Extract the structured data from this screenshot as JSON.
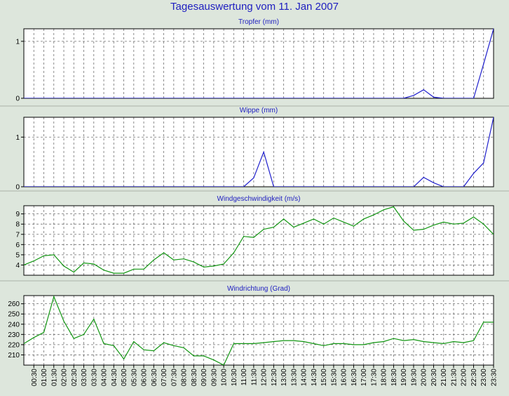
{
  "page_title": "Tagesauswertung vom 11. Jan 2007",
  "colors": {
    "background": "#dde6dc",
    "title": "#2020c0",
    "rain_line": "#1f1fcc",
    "wind_line": "#129612"
  },
  "time_labels": [
    "00:30",
    "01:00",
    "01:30",
    "02:00",
    "02:30",
    "03:00",
    "03:30",
    "04:00",
    "04:30",
    "05:00",
    "05:30",
    "06:00",
    "06:30",
    "07:00",
    "07:30",
    "08:00",
    "08:30",
    "09:00",
    "09:30",
    "10:00",
    "10:30",
    "11:00",
    "11:30",
    "12:00",
    "12:30",
    "13:00",
    "13:30",
    "14:00",
    "14:30",
    "15:00",
    "15:30",
    "16:00",
    "16:30",
    "17:00",
    "17:30",
    "18:00",
    "18:30",
    "19:00",
    "19:30",
    "20:00",
    "20:30",
    "21:00",
    "21:30",
    "22:00",
    "22:30",
    "23:00",
    "23:30"
  ],
  "chart_data": [
    {
      "type": "line",
      "title": "Tropfer (mm)",
      "color": "#1f1fcc",
      "ylim": [
        0,
        1.22
      ],
      "yticks": [
        0,
        1
      ],
      "x": [
        "00:00",
        "00:30",
        "01:00",
        "01:30",
        "02:00",
        "02:30",
        "03:00",
        "03:30",
        "04:00",
        "04:30",
        "05:00",
        "05:30",
        "06:00",
        "06:30",
        "07:00",
        "07:30",
        "08:00",
        "08:30",
        "09:00",
        "09:30",
        "10:00",
        "10:30",
        "11:00",
        "11:30",
        "12:00",
        "12:30",
        "13:00",
        "13:30",
        "14:00",
        "14:30",
        "15:00",
        "15:30",
        "16:00",
        "16:30",
        "17:00",
        "17:30",
        "18:00",
        "18:30",
        "19:00",
        "19:30",
        "20:00",
        "20:30",
        "21:00",
        "21:30",
        "22:00",
        "22:30",
        "23:00",
        "23:30"
      ],
      "values": [
        0,
        0,
        0,
        0,
        0,
        0,
        0,
        0,
        0,
        0,
        0,
        0,
        0,
        0,
        0,
        0,
        0,
        0,
        0,
        0,
        0,
        0,
        0,
        0,
        0,
        0,
        0,
        0,
        0,
        0,
        0,
        0,
        0,
        0,
        0,
        0,
        0,
        0,
        0,
        0.05,
        0.15,
        0.02,
        0,
        0,
        0,
        0,
        0.6,
        1.22
      ]
    },
    {
      "type": "line",
      "title": "Wippe (mm)",
      "color": "#1f1fcc",
      "ylim": [
        0,
        1.4
      ],
      "yticks": [
        0,
        1
      ],
      "x": [
        "00:00",
        "00:30",
        "01:00",
        "01:30",
        "02:00",
        "02:30",
        "03:00",
        "03:30",
        "04:00",
        "04:30",
        "05:00",
        "05:30",
        "06:00",
        "06:30",
        "07:00",
        "07:30",
        "08:00",
        "08:30",
        "09:00",
        "09:30",
        "10:00",
        "10:30",
        "11:00",
        "11:30",
        "12:00",
        "12:30",
        "13:00",
        "13:30",
        "14:00",
        "14:30",
        "15:00",
        "15:30",
        "16:00",
        "16:30",
        "17:00",
        "17:30",
        "18:00",
        "18:30",
        "19:00",
        "19:30",
        "20:00",
        "20:30",
        "21:00",
        "21:30",
        "22:00",
        "22:30",
        "23:00",
        "23:30"
      ],
      "values": [
        0,
        0,
        0,
        0,
        0,
        0,
        0,
        0,
        0,
        0,
        0,
        0,
        0,
        0,
        0,
        0,
        0,
        0,
        0,
        0,
        0,
        0,
        0,
        0.18,
        0.7,
        0,
        0,
        0,
        0,
        0,
        0,
        0,
        0,
        0,
        0,
        0,
        0,
        0,
        0,
        0,
        0.19,
        0.08,
        0,
        0,
        0,
        0.27,
        0.48,
        1.4
      ]
    },
    {
      "type": "line",
      "title": "Windgeschwindigkeit (m/s)",
      "color": "#129612",
      "ylim": [
        3,
        9.8
      ],
      "yticks": [
        4,
        5,
        6,
        7,
        8,
        9
      ],
      "x": [
        "00:00",
        "00:30",
        "01:00",
        "01:30",
        "02:00",
        "02:30",
        "03:00",
        "03:30",
        "04:00",
        "04:30",
        "05:00",
        "05:30",
        "06:00",
        "06:30",
        "07:00",
        "07:30",
        "08:00",
        "08:30",
        "09:00",
        "09:30",
        "10:00",
        "10:30",
        "11:00",
        "11:30",
        "12:00",
        "12:30",
        "13:00",
        "13:30",
        "14:00",
        "14:30",
        "15:00",
        "15:30",
        "16:00",
        "16:30",
        "17:00",
        "17:30",
        "18:00",
        "18:30",
        "19:00",
        "19:30",
        "20:00",
        "20:30",
        "21:00",
        "21:30",
        "22:00",
        "22:30",
        "23:00",
        "23:30"
      ],
      "values": [
        4.0,
        4.4,
        4.9,
        5.0,
        3.9,
        3.3,
        4.2,
        4.1,
        3.5,
        3.2,
        3.2,
        3.6,
        3.6,
        4.5,
        5.2,
        4.5,
        4.6,
        4.3,
        3.8,
        3.9,
        4.1,
        5.2,
        6.8,
        6.7,
        7.5,
        7.7,
        8.5,
        7.7,
        8.1,
        8.5,
        8.0,
        8.6,
        8.2,
        7.8,
        8.5,
        8.9,
        9.4,
        9.7,
        8.3,
        7.4,
        7.5,
        7.9,
        8.2,
        8.0,
        8.1,
        8.7,
        8.0,
        7.0
      ]
    },
    {
      "type": "line",
      "title": "Windrichtung (Grad)",
      "color": "#129612",
      "ylim": [
        200,
        268
      ],
      "yticks": [
        210,
        220,
        230,
        240,
        250,
        260
      ],
      "x": [
        "00:00",
        "00:30",
        "01:00",
        "01:30",
        "02:00",
        "02:30",
        "03:00",
        "03:30",
        "04:00",
        "04:30",
        "05:00",
        "05:30",
        "06:00",
        "06:30",
        "07:00",
        "07:30",
        "08:00",
        "08:30",
        "09:00",
        "09:30",
        "10:00",
        "10:30",
        "11:00",
        "11:30",
        "12:00",
        "12:30",
        "13:00",
        "13:30",
        "14:00",
        "14:30",
        "15:00",
        "15:30",
        "16:00",
        "16:30",
        "17:00",
        "17:30",
        "18:00",
        "18:30",
        "19:00",
        "19:30",
        "20:00",
        "20:30",
        "21:00",
        "21:30",
        "22:00",
        "22:30",
        "23:00",
        "23:30"
      ],
      "values": [
        221,
        227,
        232,
        267,
        243,
        226,
        230,
        245,
        221,
        219,
        206,
        223,
        215,
        214,
        222,
        219,
        217,
        209,
        209,
        205,
        200,
        221,
        221,
        221,
        222,
        223,
        224,
        224,
        223,
        221,
        219,
        221,
        221,
        220,
        220,
        222,
        223,
        226,
        224,
        225,
        223,
        222,
        221,
        223,
        222,
        224,
        242,
        242
      ]
    }
  ]
}
